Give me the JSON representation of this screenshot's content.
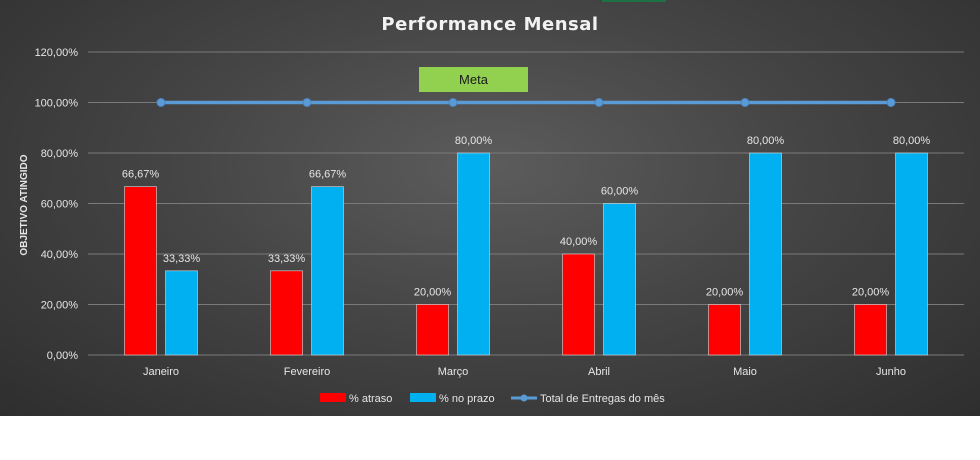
{
  "chart_data": {
    "type": "bar",
    "title": "Performance Mensal",
    "ylabel": "OBJETIVO ATINGIDO",
    "xlabel": "",
    "ylim": [
      0,
      120
    ],
    "yticks": [
      0,
      20,
      40,
      60,
      80,
      100,
      120
    ],
    "ytick_labels": [
      "0,00%",
      "20,00%",
      "40,00%",
      "60,00%",
      "80,00%",
      "100,00%",
      "120,00%"
    ],
    "categories": [
      "Janeiro",
      "Fevereiro",
      "Março",
      "Abril",
      "Maio",
      "Junho"
    ],
    "series": [
      {
        "name": "% atraso",
        "kind": "bar",
        "color": "#ff0000",
        "values": [
          66.67,
          33.33,
          20,
          40,
          20,
          20
        ],
        "labels": [
          "66,67%",
          "33,33%",
          "20,00%",
          "40,00%",
          "20,00%",
          "20,00%"
        ]
      },
      {
        "name": "% no prazo",
        "kind": "bar",
        "color": "#00b0f0",
        "values": [
          33.33,
          66.67,
          80,
          60,
          80,
          80
        ],
        "labels": [
          "33,33%",
          "66,67%",
          "80,00%",
          "60,00%",
          "80,00%",
          "80,00%"
        ]
      },
      {
        "name": "Total de Entregas do mês",
        "kind": "line",
        "color": "#5b9bd5",
        "values": [
          100,
          100,
          100,
          100,
          100,
          100
        ]
      }
    ],
    "annotation": {
      "text": "Meta",
      "color": "#92d050"
    },
    "legend_position": "bottom",
    "grid": true
  }
}
